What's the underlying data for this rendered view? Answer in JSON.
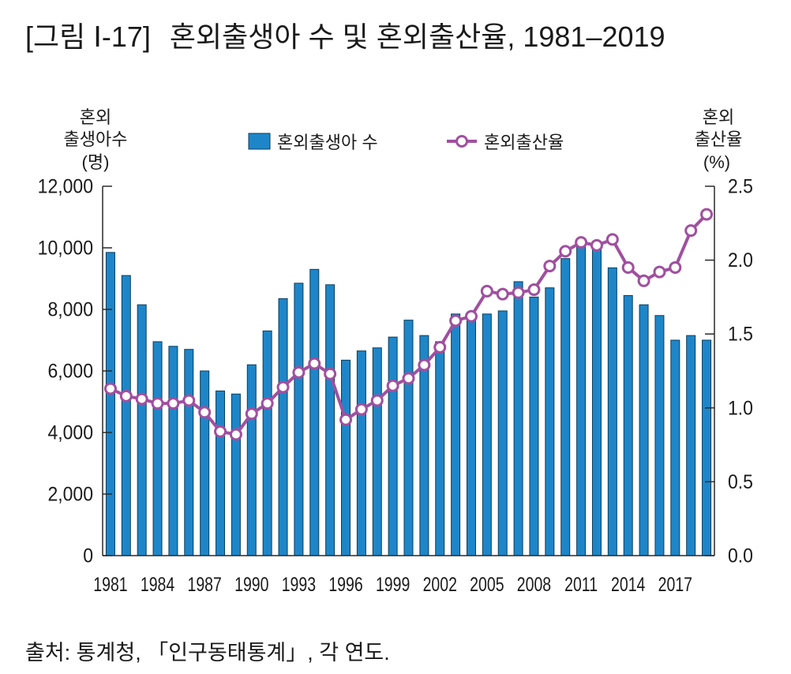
{
  "figure_label": "[그림 Ⅰ-17]",
  "source": "출처: 통계청, 「인구동태통계」, 각 연도.",
  "colors": {
    "bar": "#1e86c8",
    "bar_edge": "#0b3d5e",
    "line": "#a0509f",
    "marker_fill": "#ffffff",
    "axis": "#2a2a2a"
  },
  "chart_data": {
    "type": "bar",
    "title": "혼외출생아 수 및 혼외출산율, 1981–2019",
    "ylabel_lines": [
      "혼외",
      "출생아수",
      "(명)"
    ],
    "y2label_lines": [
      "혼외",
      "출산율",
      "(%)"
    ],
    "x": [
      1981,
      1982,
      1983,
      1984,
      1985,
      1986,
      1987,
      1988,
      1989,
      1990,
      1991,
      1992,
      1993,
      1994,
      1995,
      1996,
      1997,
      1998,
      1999,
      2000,
      2001,
      2002,
      2003,
      2004,
      2005,
      2006,
      2007,
      2008,
      2009,
      2010,
      2011,
      2012,
      2013,
      2014,
      2015,
      2016,
      2017,
      2018,
      2019
    ],
    "x_tick_labels": [
      "1981",
      "1984",
      "1987",
      "1990",
      "1993",
      "1996",
      "1999",
      "2002",
      "2005",
      "2008",
      "2011",
      "2014",
      "2017"
    ],
    "series": [
      {
        "name": "혼외출생아 수",
        "type": "bar",
        "values": [
          9850,
          9100,
          8150,
          6950,
          6800,
          6700,
          6000,
          5350,
          5250,
          6200,
          7300,
          8350,
          8850,
          9300,
          8800,
          6350,
          6650,
          6750,
          7100,
          7650,
          7150,
          6950,
          7850,
          7800,
          7850,
          7950,
          8900,
          8400,
          8700,
          9650,
          10100,
          10050,
          9350,
          8450,
          8150,
          7800,
          7000,
          7150,
          7000
        ]
      },
      {
        "name": "혼외출산율",
        "type": "line",
        "values": [
          1.13,
          1.08,
          1.06,
          1.03,
          1.03,
          1.05,
          0.97,
          0.84,
          0.82,
          0.96,
          1.03,
          1.14,
          1.24,
          1.3,
          1.23,
          0.92,
          0.99,
          1.05,
          1.15,
          1.2,
          1.29,
          1.41,
          1.59,
          1.62,
          1.79,
          1.77,
          1.78,
          1.8,
          1.96,
          2.06,
          2.12,
          2.1,
          2.14,
          1.95,
          1.86,
          1.92,
          1.95,
          2.2,
          2.31
        ]
      }
    ],
    "ylim": [
      0,
      12000
    ],
    "y2lim": [
      0,
      2.5
    ],
    "y_ticks": [
      0,
      2000,
      4000,
      6000,
      8000,
      10000,
      12000
    ],
    "y_tick_labels": [
      "0",
      "2,000",
      "4,000",
      "6,000",
      "8,000",
      "10,000",
      "12,000"
    ],
    "y2_ticks": [
      0,
      0.5,
      1.0,
      1.5,
      2.0,
      2.5
    ],
    "y2_tick_labels": [
      "0.0",
      "0.5",
      "1.0",
      "1.5",
      "2.0",
      "2.5"
    ],
    "grid": false,
    "legend": "top-center"
  }
}
